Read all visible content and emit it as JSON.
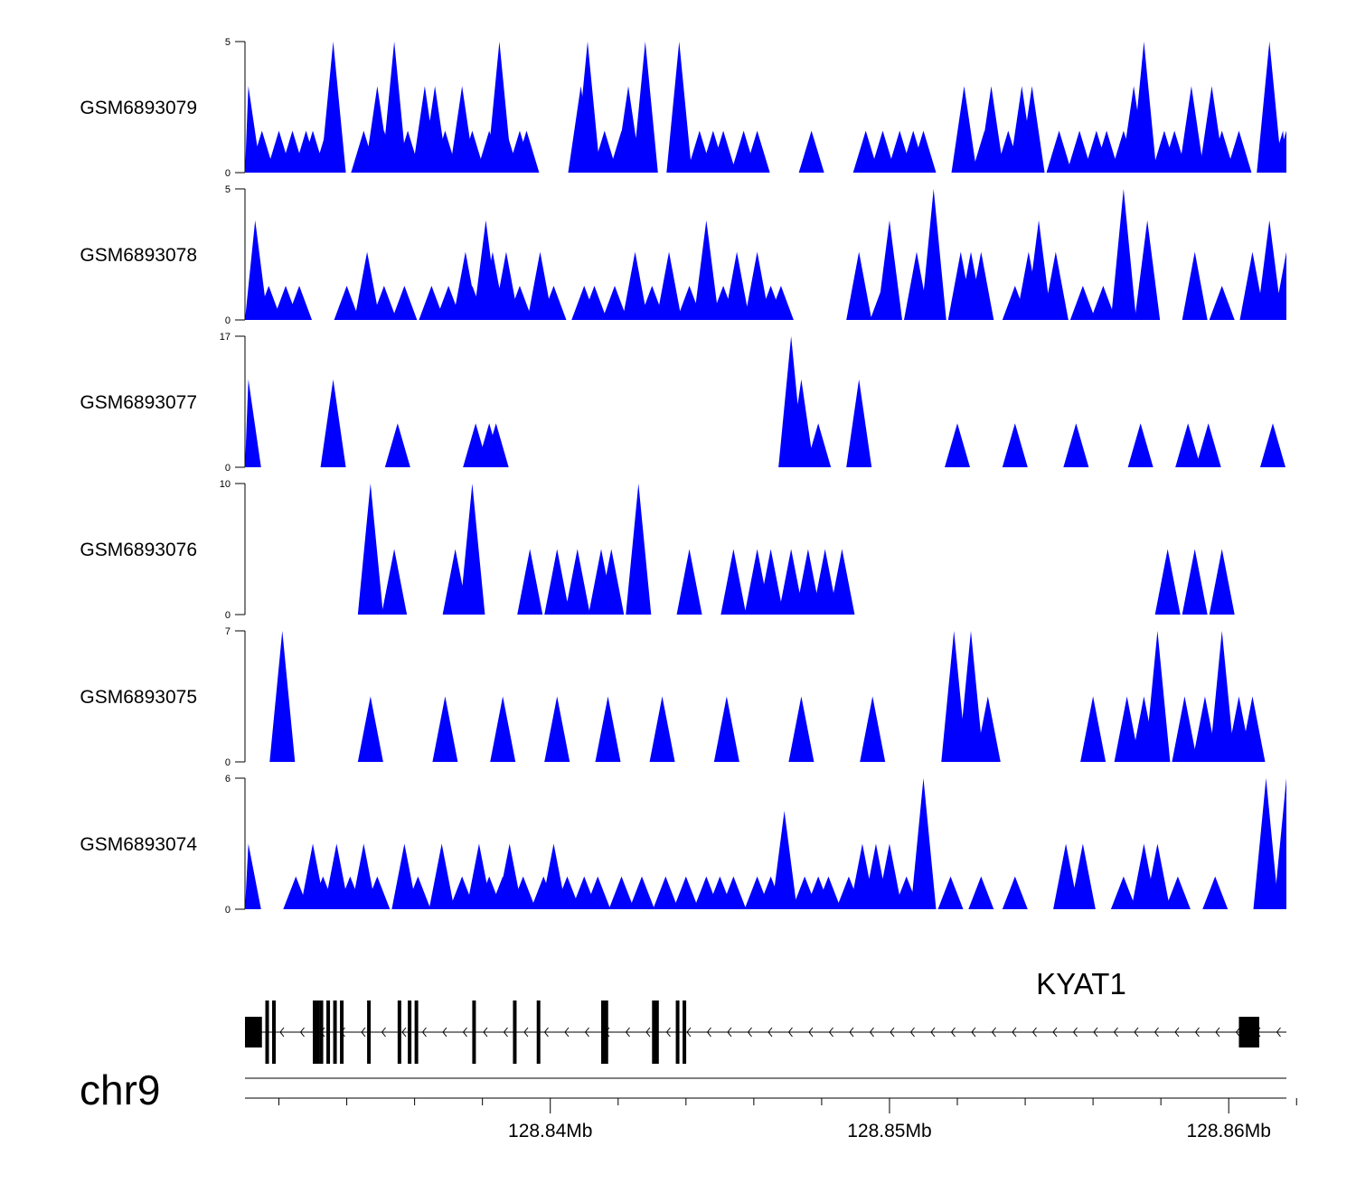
{
  "chart_data": {
    "type": "area",
    "title": "",
    "chromosome": "chr9",
    "fill_color": "#0000ff",
    "genome_range": [
      128.831,
      128.8617
    ],
    "x_axis": {
      "unit": "Mb",
      "major_ticks": [
        128.84,
        128.85,
        128.86
      ],
      "major_labels": [
        "128.84Mb",
        "128.85Mb",
        "128.86Mb"
      ],
      "minor_ticks": [
        128.832,
        128.834,
        128.836,
        128.838,
        128.842,
        128.844,
        128.846,
        128.848,
        128.852,
        128.854,
        128.856,
        128.858,
        128.862
      ]
    },
    "tracks": [
      {
        "name": "GSM6893079",
        "ymax": 5,
        "peaks": [
          [
            128.8311,
            3.3
          ],
          [
            128.8315,
            1.6
          ],
          [
            128.832,
            1.6
          ],
          [
            128.8324,
            1.6
          ],
          [
            128.8328,
            1.6
          ],
          [
            128.833,
            1.6
          ],
          [
            128.8334,
            1.6
          ],
          [
            128.8336,
            5
          ],
          [
            128.8345,
            1.6
          ],
          [
            128.8349,
            3.3
          ],
          [
            128.8351,
            1.6
          ],
          [
            128.8354,
            5
          ],
          [
            128.8358,
            1.6
          ],
          [
            128.8363,
            3.3
          ],
          [
            128.8366,
            3.3
          ],
          [
            128.8369,
            1.6
          ],
          [
            128.8374,
            3.3
          ],
          [
            128.8377,
            1.6
          ],
          [
            128.8382,
            1.6
          ],
          [
            128.8385,
            5
          ],
          [
            128.8387,
            1.6
          ],
          [
            128.8391,
            1.6
          ],
          [
            128.8393,
            1.6
          ],
          [
            128.8409,
            3.3
          ],
          [
            128.8411,
            5
          ],
          [
            128.8416,
            1.6
          ],
          [
            128.8421,
            1.6
          ],
          [
            128.8423,
            3.3
          ],
          [
            128.8428,
            5
          ],
          [
            128.8438,
            5
          ],
          [
            128.8444,
            1.6
          ],
          [
            128.8448,
            1.6
          ],
          [
            128.8451,
            1.6
          ],
          [
            128.8457,
            1.6
          ],
          [
            128.8461,
            1.6
          ],
          [
            128.8477,
            1.6
          ],
          [
            128.8493,
            1.6
          ],
          [
            128.8498,
            1.6
          ],
          [
            128.8503,
            1.6
          ],
          [
            128.8507,
            1.6
          ],
          [
            128.851,
            1.6
          ],
          [
            128.8522,
            3.3
          ],
          [
            128.8528,
            1.6
          ],
          [
            128.853,
            3.3
          ],
          [
            128.8535,
            1.6
          ],
          [
            128.8538,
            1.6
          ],
          [
            128.8539,
            3.3
          ],
          [
            128.8542,
            3.3
          ],
          [
            128.855,
            1.6
          ],
          [
            128.8556,
            1.6
          ],
          [
            128.8561,
            1.6
          ],
          [
            128.8564,
            1.6
          ],
          [
            128.8569,
            1.6
          ],
          [
            128.8572,
            3.3
          ],
          [
            128.8575,
            5
          ],
          [
            128.8581,
            1.6
          ],
          [
            128.8584,
            1.6
          ],
          [
            128.8589,
            3.3
          ],
          [
            128.8595,
            3.3
          ],
          [
            128.8598,
            1.6
          ],
          [
            128.8603,
            1.6
          ],
          [
            128.8612,
            5
          ],
          [
            128.8616,
            1.6
          ],
          [
            128.8617,
            1.6
          ]
        ]
      },
      {
        "name": "GSM6893078",
        "ymax": 5,
        "peaks": [
          [
            128.8313,
            3.8
          ],
          [
            128.8317,
            1.3
          ],
          [
            128.8322,
            1.3
          ],
          [
            128.8326,
            1.3
          ],
          [
            128.834,
            1.3
          ],
          [
            128.8346,
            2.6
          ],
          [
            128.8351,
            1.3
          ],
          [
            128.8357,
            1.3
          ],
          [
            128.8365,
            1.3
          ],
          [
            128.837,
            1.3
          ],
          [
            128.8375,
            2.6
          ],
          [
            128.8377,
            1.3
          ],
          [
            128.8381,
            3.8
          ],
          [
            128.8383,
            2.6
          ],
          [
            128.8387,
            2.6
          ],
          [
            128.8391,
            1.3
          ],
          [
            128.8397,
            2.6
          ],
          [
            128.8401,
            1.3
          ],
          [
            128.841,
            1.3
          ],
          [
            128.8413,
            1.3
          ],
          [
            128.8419,
            1.3
          ],
          [
            128.8425,
            2.6
          ],
          [
            128.843,
            1.3
          ],
          [
            128.8435,
            2.6
          ],
          [
            128.8441,
            1.3
          ],
          [
            128.8446,
            3.8
          ],
          [
            128.8451,
            1.3
          ],
          [
            128.8455,
            2.6
          ],
          [
            128.8461,
            2.6
          ],
          [
            128.8465,
            1.3
          ],
          [
            128.8468,
            1.3
          ],
          [
            128.8491,
            2.6
          ],
          [
            128.8498,
            1.3
          ],
          [
            128.85,
            3.8
          ],
          [
            128.8508,
            2.6
          ],
          [
            128.8511,
            1.3
          ],
          [
            128.8513,
            5
          ],
          [
            128.8521,
            2.6
          ],
          [
            128.8524,
            2.6
          ],
          [
            128.8527,
            2.6
          ],
          [
            128.8537,
            1.3
          ],
          [
            128.8541,
            2.6
          ],
          [
            128.8544,
            3.8
          ],
          [
            128.8549,
            2.6
          ],
          [
            128.8557,
            1.3
          ],
          [
            128.8563,
            1.3
          ],
          [
            128.8569,
            5
          ],
          [
            128.8576,
            3.8
          ],
          [
            128.859,
            2.6
          ],
          [
            128.8598,
            1.3
          ],
          [
            128.8607,
            2.6
          ],
          [
            128.8612,
            3.8
          ],
          [
            128.8617,
            2.6
          ]
        ]
      },
      {
        "name": "GSM6893077",
        "ymax": 17,
        "peaks": [
          [
            128.8311,
            11.4
          ],
          [
            128.8336,
            11.4
          ],
          [
            128.8355,
            5.7
          ],
          [
            128.8378,
            5.7
          ],
          [
            128.8382,
            5.7
          ],
          [
            128.8384,
            5.7
          ],
          [
            128.8471,
            17
          ],
          [
            128.8474,
            11.4
          ],
          [
            128.8479,
            5.7
          ],
          [
            128.8491,
            11.4
          ],
          [
            128.852,
            5.7
          ],
          [
            128.8537,
            5.7
          ],
          [
            128.8555,
            5.7
          ],
          [
            128.8574,
            5.7
          ],
          [
            128.8588,
            5.7
          ],
          [
            128.8594,
            5.7
          ],
          [
            128.8613,
            5.7
          ]
        ]
      },
      {
        "name": "GSM6893076",
        "ymax": 10,
        "peaks": [
          [
            128.8347,
            10
          ],
          [
            128.8354,
            5
          ],
          [
            128.8372,
            5
          ],
          [
            128.8377,
            10
          ],
          [
            128.8394,
            5
          ],
          [
            128.8402,
            5
          ],
          [
            128.8408,
            5
          ],
          [
            128.8415,
            5
          ],
          [
            128.8418,
            5
          ],
          [
            128.8426,
            10
          ],
          [
            128.8441,
            5
          ],
          [
            128.8454,
            5
          ],
          [
            128.8461,
            5
          ],
          [
            128.8465,
            5
          ],
          [
            128.8471,
            5
          ],
          [
            128.8476,
            5
          ],
          [
            128.8481,
            5
          ],
          [
            128.8486,
            5
          ],
          [
            128.8582,
            5
          ],
          [
            128.859,
            5
          ],
          [
            128.8598,
            5
          ]
        ]
      },
      {
        "name": "GSM6893075",
        "ymax": 7,
        "peaks": [
          [
            128.8321,
            7
          ],
          [
            128.8347,
            3.5
          ],
          [
            128.8369,
            3.5
          ],
          [
            128.8386,
            3.5
          ],
          [
            128.8402,
            3.5
          ],
          [
            128.8417,
            3.5
          ],
          [
            128.8433,
            3.5
          ],
          [
            128.8452,
            3.5
          ],
          [
            128.8474,
            3.5
          ],
          [
            128.8495,
            3.5
          ],
          [
            128.8519,
            7
          ],
          [
            128.8524,
            7
          ],
          [
            128.8529,
            3.5
          ],
          [
            128.856,
            3.5
          ],
          [
            128.857,
            3.5
          ],
          [
            128.8575,
            3.5
          ],
          [
            128.8579,
            7
          ],
          [
            128.8587,
            3.5
          ],
          [
            128.8593,
            3.5
          ],
          [
            128.8598,
            7
          ],
          [
            128.8603,
            3.5
          ],
          [
            128.8607,
            3.5
          ]
        ]
      },
      {
        "name": "GSM6893074",
        "ymax": 6,
        "peaks": [
          [
            128.8311,
            3
          ],
          [
            128.8325,
            1.5
          ],
          [
            128.833,
            3
          ],
          [
            128.8333,
            1.5
          ],
          [
            128.8337,
            3
          ],
          [
            128.8341,
            1.5
          ],
          [
            128.8345,
            3
          ],
          [
            128.8349,
            1.5
          ],
          [
            128.8357,
            3
          ],
          [
            128.8361,
            1.5
          ],
          [
            128.8368,
            3
          ],
          [
            128.8374,
            1.5
          ],
          [
            128.8379,
            3
          ],
          [
            128.8382,
            1.5
          ],
          [
            128.8386,
            1.5
          ],
          [
            128.8388,
            3
          ],
          [
            128.8392,
            1.5
          ],
          [
            128.8398,
            1.5
          ],
          [
            128.8401,
            3
          ],
          [
            128.8405,
            1.5
          ],
          [
            128.841,
            1.5
          ],
          [
            128.8414,
            1.5
          ],
          [
            128.8421,
            1.5
          ],
          [
            128.8427,
            1.5
          ],
          [
            128.8434,
            1.5
          ],
          [
            128.844,
            1.5
          ],
          [
            128.8446,
            1.5
          ],
          [
            128.845,
            1.5
          ],
          [
            128.8454,
            1.5
          ],
          [
            128.8461,
            1.5
          ],
          [
            128.8465,
            1.5
          ],
          [
            128.8469,
            4.5
          ],
          [
            128.8475,
            1.5
          ],
          [
            128.8479,
            1.5
          ],
          [
            128.8482,
            1.5
          ],
          [
            128.8488,
            1.5
          ],
          [
            128.8492,
            3
          ],
          [
            128.8496,
            3
          ],
          [
            128.85,
            3
          ],
          [
            128.8505,
            1.5
          ],
          [
            128.851,
            6
          ],
          [
            128.8518,
            1.5
          ],
          [
            128.8527,
            1.5
          ],
          [
            128.8537,
            1.5
          ],
          [
            128.8552,
            3
          ],
          [
            128.8557,
            3
          ],
          [
            128.8569,
            1.5
          ],
          [
            128.8575,
            3
          ],
          [
            128.8579,
            3
          ],
          [
            128.8585,
            1.5
          ],
          [
            128.8596,
            1.5
          ],
          [
            128.8611,
            6
          ],
          [
            128.8617,
            6
          ]
        ]
      }
    ],
    "gene_track": {
      "gene_name": "KYAT1",
      "strand": "-",
      "exons": [
        [
          128.831,
          128.8315
        ],
        [
          128.8316,
          128.8317
        ],
        [
          128.8318,
          128.8319
        ],
        [
          128.833,
          128.8332
        ],
        [
          128.8332,
          128.8333
        ],
        [
          128.8334,
          128.8335
        ],
        [
          128.8336,
          128.8337
        ],
        [
          128.8338,
          128.8339
        ],
        [
          128.8346,
          128.8347
        ],
        [
          128.8355,
          128.8356
        ],
        [
          128.8358,
          128.8359
        ],
        [
          128.836,
          128.8361
        ],
        [
          128.8377,
          128.83775
        ],
        [
          128.8389,
          128.839
        ],
        [
          128.8396,
          128.8397
        ],
        [
          128.8415,
          128.84157
        ],
        [
          128.8416,
          128.8417
        ],
        [
          128.843,
          128.8432
        ],
        [
          128.8437,
          128.8438
        ],
        [
          128.8439,
          128.844
        ],
        [
          128.8603,
          128.8609
        ]
      ]
    }
  }
}
